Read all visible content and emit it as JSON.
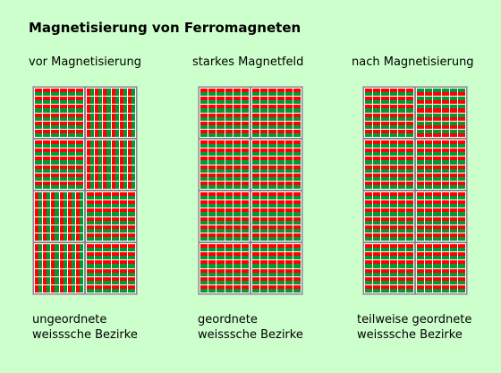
{
  "title": "Magnetisierung von Ferromagneten",
  "colors": {
    "background": "#ccffcc",
    "north": "#ff0000",
    "south": "#009933",
    "frame": "#888888",
    "grid": "#ffffff"
  },
  "panels": [
    {
      "heading": "vor Magnetisierung",
      "caption_line1": "ungeordnete",
      "caption_line2": "weisssche Bezirke",
      "domains": [
        "h-red-top",
        "v-red-left",
        "h-red-top",
        "v-red-left",
        "v-red-left",
        "h-red-top",
        "v-red-left",
        "h-red-top"
      ]
    },
    {
      "heading": "starkes Magnetfeld",
      "caption_line1": "geordnete",
      "caption_line2": "weisssche Bezirke",
      "domains": [
        "h-red-top",
        "h-red-top",
        "h-red-top",
        "h-red-top",
        "h-red-top",
        "h-red-top",
        "h-red-top",
        "h-red-top"
      ]
    },
    {
      "heading": "nach Magnetisierung",
      "caption_line1": "teilweise geordnete",
      "caption_line2": "weisssche Bezirke",
      "domains": [
        "h-red-top",
        "h-green-top",
        "h-red-top",
        "h-red-top",
        "h-red-top",
        "h-red-top",
        "h-red-top",
        "h-red-top"
      ]
    }
  ]
}
